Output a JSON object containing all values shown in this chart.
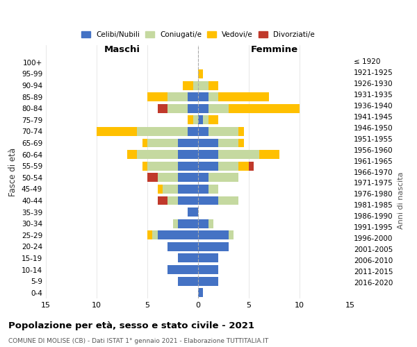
{
  "age_groups": [
    "0-4",
    "5-9",
    "10-14",
    "15-19",
    "20-24",
    "25-29",
    "30-34",
    "35-39",
    "40-44",
    "45-49",
    "50-54",
    "55-59",
    "60-64",
    "65-69",
    "70-74",
    "75-79",
    "80-84",
    "85-89",
    "90-94",
    "95-99",
    "100+"
  ],
  "birth_years": [
    "2016-2020",
    "2011-2015",
    "2006-2010",
    "2001-2005",
    "1996-2000",
    "1991-1995",
    "1986-1990",
    "1981-1985",
    "1976-1980",
    "1971-1975",
    "1966-1970",
    "1961-1965",
    "1956-1960",
    "1951-1955",
    "1946-1950",
    "1941-1945",
    "1936-1940",
    "1931-1935",
    "1926-1930",
    "1921-1925",
    "≤ 1920"
  ],
  "male_celibe": [
    0,
    2,
    3,
    2,
    3,
    4,
    2,
    1,
    2,
    2,
    2,
    2,
    2,
    2,
    1,
    0,
    1,
    1,
    0,
    0,
    0
  ],
  "male_coniugato": [
    0,
    0,
    0,
    0,
    0,
    0.5,
    0.5,
    0,
    1,
    1.5,
    2,
    3,
    4,
    3,
    5,
    0.5,
    2,
    2,
    0.5,
    0,
    0
  ],
  "male_vedovo": [
    0,
    0,
    0,
    0,
    0,
    0.5,
    0,
    0,
    0,
    0.5,
    0,
    0.5,
    1,
    0.5,
    4,
    0.5,
    0,
    2,
    1,
    0,
    0
  ],
  "male_divorziato": [
    0,
    0,
    0,
    0,
    0,
    0,
    0,
    0,
    1,
    0,
    1,
    0,
    0,
    0,
    0,
    0,
    1,
    0,
    0,
    0,
    0
  ],
  "female_celibe": [
    0.5,
    2,
    2,
    2,
    3,
    3,
    1,
    0,
    2,
    1,
    1,
    2,
    2,
    2,
    1,
    0.5,
    1,
    1,
    0,
    0,
    0
  ],
  "female_coniugato": [
    0,
    0,
    0,
    0,
    0,
    0.5,
    0.5,
    0,
    2,
    1,
    3,
    2,
    4,
    2,
    3,
    0.5,
    2,
    1,
    1,
    0,
    0
  ],
  "female_vedovo": [
    0,
    0,
    0,
    0,
    0,
    0,
    0,
    0,
    0,
    0,
    0,
    1,
    2,
    0.5,
    0.5,
    1,
    7,
    5,
    1,
    0.5,
    0
  ],
  "female_divorziato": [
    0,
    0,
    0,
    0,
    0,
    0,
    0,
    0,
    0,
    0,
    0,
    0.5,
    0,
    0,
    0,
    0,
    0,
    0,
    0,
    0,
    0
  ],
  "color_celibe": "#4472c4",
  "color_coniugato": "#c5d9a0",
  "color_vedovo": "#ffc000",
  "color_divorziato": "#c0392b",
  "title": "Popolazione per età, sesso e stato civile - 2021",
  "subtitle": "COMUNE DI MOLISE (CB) - Dati ISTAT 1° gennaio 2021 - Elaborazione TUTTITALIA.IT",
  "xlabel_left": "Maschi",
  "xlabel_right": "Femmine",
  "ylabel_left": "Fasce di età",
  "ylabel_right": "Anni di nascita",
  "xlim": 15,
  "background_color": "#ffffff",
  "grid_color": "#dddddd"
}
